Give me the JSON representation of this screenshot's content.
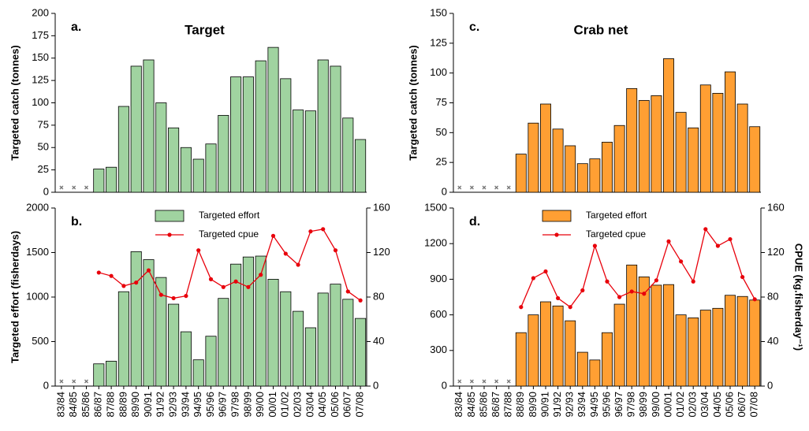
{
  "chart_data": [
    {
      "type": "bar",
      "label": "a.",
      "title": "Target",
      "ylabel": "Targeted catch (tonnes)",
      "values": [
        null,
        null,
        null,
        26,
        28,
        96,
        141,
        148,
        100,
        72,
        50,
        37,
        54,
        86,
        129,
        129,
        147,
        162,
        127,
        92,
        91,
        148,
        141,
        83,
        59
      ],
      "color": "#a0d3a0",
      "ylim": [
        0,
        200
      ],
      "yticks": [
        0,
        25,
        50,
        75,
        100,
        125,
        150,
        175,
        200
      ]
    },
    {
      "type": "bar",
      "label": "b.",
      "ylabel": "Targeted effort (fisherdays)",
      "categories": [
        "83/84",
        "84/85",
        "85/86",
        "86/87",
        "87/88",
        "88/89",
        "89/90",
        "90/91",
        "91/92",
        "92/93",
        "93/94",
        "94/95",
        "95/96",
        "96/97",
        "97/98",
        "98/99",
        "99/00",
        "00/01",
        "01/02",
        "02/03",
        "03/04",
        "04/05",
        "05/06",
        "06/07",
        "07/08"
      ],
      "series": [
        {
          "name": "Targeted effort",
          "color": "#a0d3a0",
          "values": [
            null,
            null,
            null,
            250,
            280,
            1060,
            1510,
            1420,
            1220,
            920,
            610,
            295,
            560,
            985,
            1370,
            1450,
            1460,
            1200,
            1060,
            840,
            655,
            1045,
            1145,
            975,
            760
          ]
        },
        {
          "name": "Targeted cpue",
          "type": "line",
          "axis": "y2",
          "color": "#e8000b",
          "values": [
            null,
            null,
            null,
            102,
            99,
            90,
            93,
            104,
            82,
            79,
            81,
            122,
            96,
            89,
            94,
            89,
            100,
            135,
            119,
            109,
            139,
            141,
            122,
            85,
            77
          ]
        }
      ],
      "ylim": [
        0,
        2000
      ],
      "yticks": [
        0,
        500,
        1000,
        1500,
        2000
      ],
      "y2lim": [
        0,
        160
      ],
      "y2ticks": [
        0,
        40,
        80,
        120,
        160
      ]
    },
    {
      "type": "bar",
      "label": "c.",
      "title": "Crab net",
      "ylabel": "Targeted catch (tonnes)",
      "values": [
        null,
        null,
        null,
        null,
        null,
        32,
        58,
        74,
        53,
        39,
        24,
        28,
        42,
        56,
        87,
        77,
        81,
        112,
        67,
        54,
        90,
        83,
        101,
        74,
        55
      ],
      "color": "#ff9f33",
      "ylim": [
        0,
        150
      ],
      "yticks": [
        0,
        25,
        50,
        75,
        100,
        125,
        150
      ]
    },
    {
      "type": "bar",
      "label": "d.",
      "y2label": "CPUE (kg.fisherday⁻¹)",
      "categories": [
        "83/84",
        "84/85",
        "85/86",
        "86/87",
        "87/88",
        "88/89",
        "89/90",
        "90/91",
        "91/92",
        "92/93",
        "93/94",
        "94/95",
        "95/96",
        "96/97",
        "97/98",
        "98/99",
        "99/00",
        "00/01",
        "01/02",
        "02/03",
        "03/04",
        "04/05",
        "05/06",
        "06/07",
        "07/08"
      ],
      "series": [
        {
          "name": "Targeted effort",
          "color": "#ff9f33",
          "values": [
            null,
            null,
            null,
            null,
            null,
            450,
            600,
            710,
            675,
            550,
            285,
            220,
            450,
            690,
            1020,
            920,
            850,
            855,
            600,
            575,
            640,
            655,
            765,
            755,
            725
          ]
        },
        {
          "name": "Targeted cpue",
          "type": "line",
          "axis": "y2",
          "color": "#e8000b",
          "values": [
            null,
            null,
            null,
            null,
            null,
            71,
            97,
            103,
            79,
            71,
            86,
            126,
            94,
            80,
            85,
            83,
            95,
            130,
            112,
            94,
            141,
            126,
            132,
            98,
            78
          ]
        }
      ],
      "ylim": [
        0,
        1500
      ],
      "yticks": [
        0,
        300,
        600,
        900,
        1200,
        1500
      ],
      "y2lim": [
        0,
        160
      ],
      "y2ticks": [
        0,
        40,
        80,
        120,
        160
      ]
    }
  ]
}
